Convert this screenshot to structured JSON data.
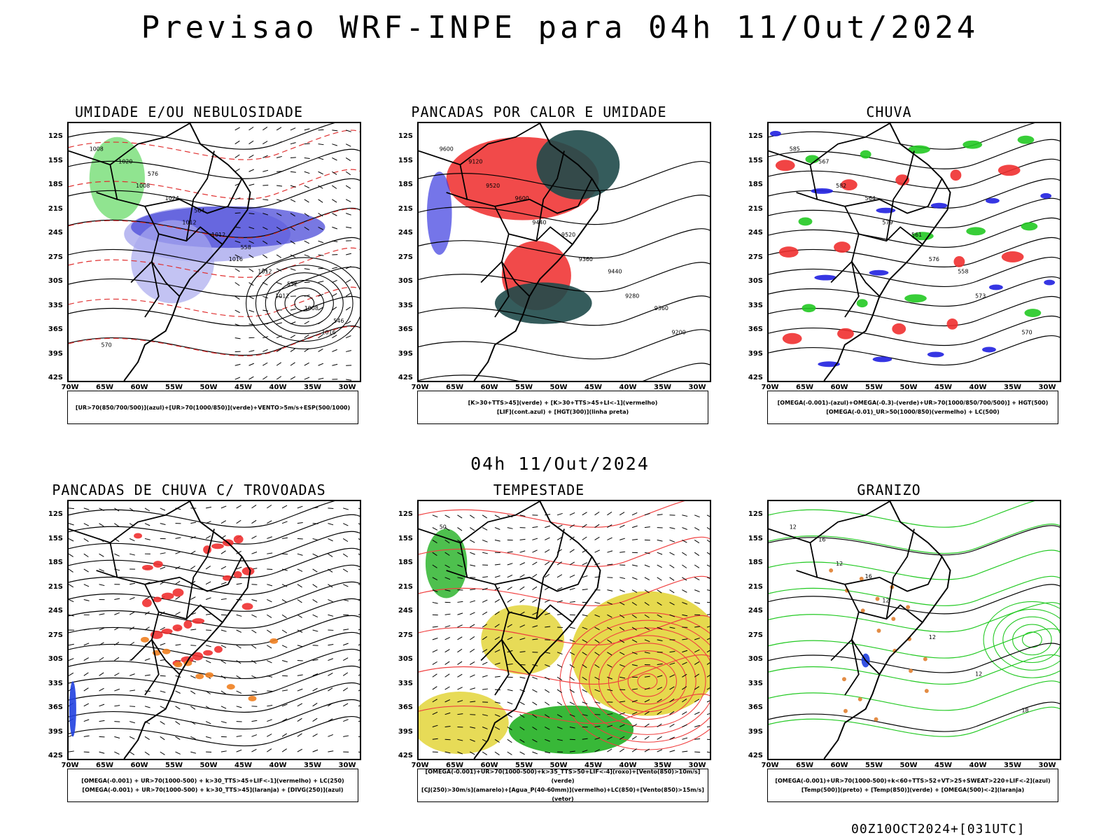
{
  "title": "Previsao WRF-INPE  para 04h 11/Out/2024",
  "subtitle": "04h 11/Out/2024",
  "footer": "00Z10OCT2024+[031UTC]",
  "lat_labels": [
    "12S",
    "15S",
    "18S",
    "21S",
    "24S",
    "27S",
    "30S",
    "33S",
    "36S",
    "39S",
    "42S"
  ],
  "lon_labels": [
    "70W",
    "65W",
    "60W",
    "55W",
    "50W",
    "45W",
    "40W",
    "35W",
    "30W"
  ],
  "panels": [
    {
      "title": "UMIDADE E/OU NEBULOSIDADE",
      "legend": [
        "[UR>70(850/700/500)](azul)+[UR>70(1000/850)](verde)+VENTO>5m/s+ESP(500/1000)"
      ],
      "contour_labels": [
        "1008",
        "1008",
        "1012",
        "1016",
        "1012",
        "1016",
        "1020",
        "1024",
        "1012",
        "1012",
        "1008",
        "570",
        "576",
        "564",
        "558",
        "552",
        "546"
      ],
      "fill_colors": {
        "blue": "#4b4bd8",
        "lightblue": "#a9a9ee",
        "green": "#22c922",
        "red": "#e03030"
      }
    },
    {
      "title": "PANCADAS POR CALOR E UMIDADE",
      "legend": [
        "[K>30+TTS>45](verde) + [K>30+TTS>45+LI<-1](vermelho)",
        "[LIF](cont.azul) + [HGT(300)](linha preta)"
      ],
      "contour_labels": [
        "9600",
        "9520",
        "9440",
        "9360",
        "9280",
        "9200",
        "9120",
        "9600",
        "9520",
        "9440",
        "9360"
      ],
      "fill_colors": {
        "red": "#f04040",
        "darkgreen": "#1f4a4a",
        "blue": "#3a3ae0"
      }
    },
    {
      "title": "CHUVA",
      "legend": [
        "[OMEGA(-0.001)-(azul)+OMEGA(-0.3)-(verde)+UR>70(1000/850/700/500)] + HGT(500)",
        "[OMEGA(-0.01)_UR>50(1000/850)(vermelho) + LC(500)"
      ],
      "contour_labels": [
        "585",
        "582",
        "579",
        "576",
        "573",
        "570",
        "567",
        "564",
        "561",
        "558"
      ],
      "fill_colors": {
        "blue": "#2020e0",
        "green": "#22c922",
        "red": "#f03030"
      }
    },
    {
      "title": "PANCADAS DE CHUVA C/ TROVOADAS",
      "legend": [
        "[OMEGA(-0.001) + UR>70(1000-500) + k>30_TTS>45+LIF<-1](vermelho) + LC(250)",
        "[OMEGA(-0.001) + UR>70(1000-500) + k>30_TTS>45](laranja) + [DIVG(250)](azul)"
      ],
      "contour_labels": [],
      "fill_colors": {
        "red": "#f03030",
        "orange": "#f08020",
        "blue": "#2040e0"
      }
    },
    {
      "title": "TEMPESTADE",
      "legend": [
        "[OMEGA(-0.001)+UR>70(1000-500)+k>35_TTS>50+LIF<-4](roxo)+[Vento(850)>10m/s](verde)",
        "[CJ(250)>30m/s](amarelo)+[Agua_P(40-60mm)](vermelho)+LC(850)+[Vento(850)>15m/s](vetor)"
      ],
      "contour_labels": [
        "50"
      ],
      "fill_colors": {
        "yellow": "#e3d53a",
        "green": "#22b022",
        "red": "#f04040"
      }
    },
    {
      "title": "GRANIZO",
      "legend": [
        "[OMEGA(-0.001)+UR>70(1000-500)+k<60+TTS>52+VT>25+SWEAT>220+LIF<-2](azul)",
        "[Temp(500)](preto) + [Temp(850)](verde) + [OMEGA(500)<-2](laranja)"
      ],
      "contour_labels": [
        "12",
        "12",
        "12",
        "12",
        "12",
        "18",
        "16",
        "16"
      ],
      "fill_colors": {
        "green": "#22c922",
        "blue": "#2040e0",
        "orange": "#e08030"
      }
    }
  ]
}
